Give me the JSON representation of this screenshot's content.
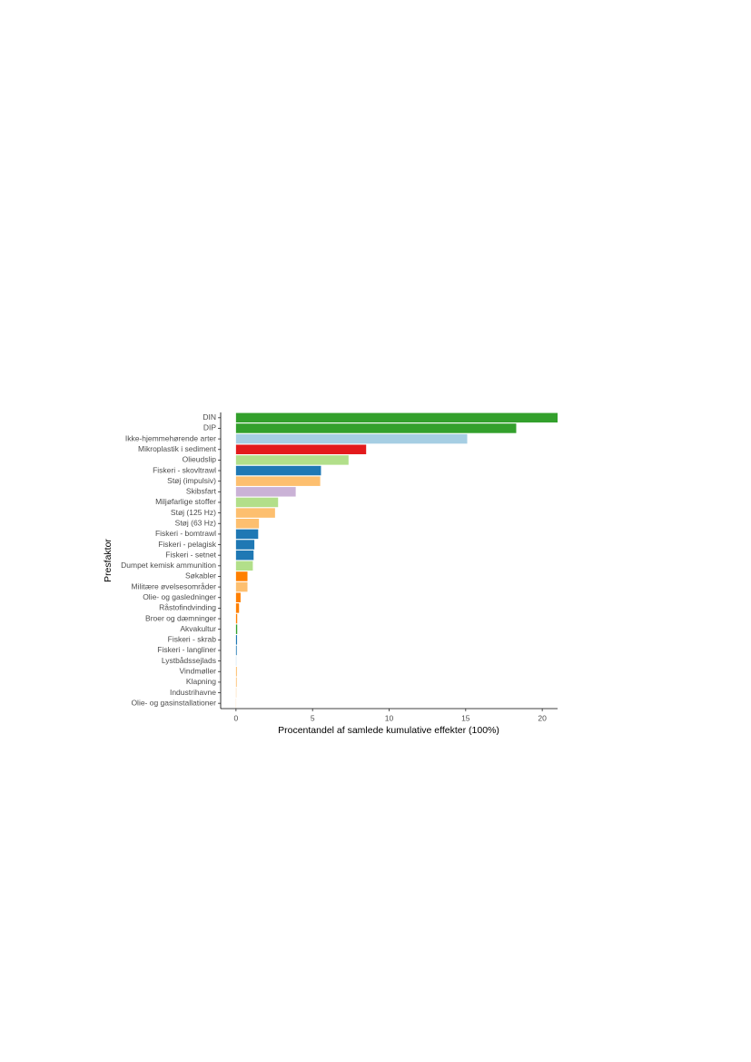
{
  "chart_data": {
    "type": "bar",
    "orientation": "horizontal",
    "x_label": "Procentandel af samlede kumulative effekter (100%)",
    "y_label": "Presfaktor",
    "categories": [
      "DIN",
      "DIP",
      "Ikke-hjemmehørende arter",
      "Mikroplastik i sediment",
      "Olieudslip",
      "Fiskeri - skovltrawl",
      "Støj (impulsiv)",
      "Skibsfart",
      "Miljøfarlige stoffer",
      "Støj (125 Hz)",
      "Støj (63 Hz)",
      "Fiskeri - bomtrawl",
      "Fiskeri - pelagisk",
      "Fiskeri - setnet",
      "Dumpet kemisk ammunition",
      "Søkabler",
      "Militære øvelsesområder",
      "Olie- og gasledninger",
      "Råstofindvinding",
      "Broer og dæmninger",
      "Akvakultur",
      "Fiskeri - skrab",
      "Fiskeri - langliner",
      "Lystbådssejlads",
      "Vindmøller",
      "Klapning",
      "Industrihavne",
      "Olie- og gasinstallationer"
    ],
    "values": [
      21.0,
      18.3,
      15.1,
      8.5,
      7.35,
      5.55,
      5.5,
      3.9,
      2.75,
      2.55,
      1.5,
      1.45,
      1.2,
      1.15,
      1.1,
      0.75,
      0.75,
      0.3,
      0.2,
      0.08,
      0.08,
      0.07,
      0.05,
      0.02,
      0.06,
      0.05,
      0.02,
      0.01
    ],
    "colors": [
      "#33a02c",
      "#33a02c",
      "#a6cee3",
      "#e31a1c",
      "#b2df8a",
      "#1f78b4",
      "#fdbf6f",
      "#cab2d6",
      "#b2df8a",
      "#fdbf6f",
      "#fdbf6f",
      "#1f78b4",
      "#1f78b4",
      "#1f78b4",
      "#b2df8a",
      "#ff7f00",
      "#fdbf6f",
      "#ff7f00",
      "#ff7f00",
      "#ff7f00",
      "#33a02c",
      "#1f78b4",
      "#1f78b4",
      "#a6cee3",
      "#fdbf6f",
      "#fdbf6f",
      "#fdbf6f",
      "#fdbf6f"
    ],
    "xlim": [
      -1,
      21
    ],
    "xticks": [
      0,
      5,
      10,
      15,
      20
    ],
    "grid": false
  }
}
